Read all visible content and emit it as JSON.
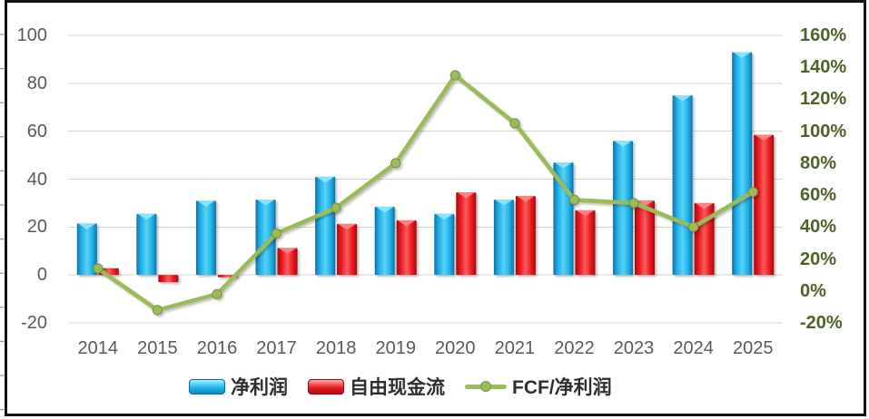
{
  "chart_data": {
    "type": "combo-bar-line",
    "title": "",
    "categories": [
      "2014",
      "2015",
      "2016",
      "2017",
      "2018",
      "2019",
      "2020",
      "2021",
      "2022",
      "2023",
      "2024",
      "2025"
    ],
    "series": [
      {
        "name": "净利润",
        "type": "bar",
        "axis": "left",
        "color": "#1fb4ea",
        "values": [
          21.5,
          25.5,
          31,
          31.5,
          41,
          28.5,
          25.5,
          31.5,
          47,
          56,
          75,
          93
        ]
      },
      {
        "name": "自由现金流",
        "type": "bar",
        "axis": "left",
        "color": "#e8191f",
        "values": [
          2.8,
          -3,
          -1,
          11.3,
          21.3,
          22.8,
          34.5,
          33,
          27,
          31,
          30,
          58.5
        ]
      },
      {
        "name": "FCF/净利润",
        "type": "line",
        "axis": "right",
        "color": "#9bbb59",
        "values_pct": [
          14,
          -12,
          -2,
          36,
          52,
          80,
          135,
          105,
          57,
          55,
          40,
          62
        ]
      }
    ],
    "left_axis": {
      "min": -20,
      "max": 100,
      "step": 20,
      "ticks": [
        "100",
        "80",
        "60",
        "40",
        "20",
        "0",
        "-20"
      ]
    },
    "right_axis": {
      "min": -20,
      "max": 160,
      "step": 20,
      "ticks": [
        "160%",
        "140%",
        "120%",
        "100%",
        "80%",
        "60%",
        "40%",
        "20%",
        "0%",
        "-20%"
      ]
    },
    "grid": true,
    "legend_position": "bottom",
    "colors": {
      "gridline": "#d6d6d6",
      "frame_border": "#141414",
      "left_axis_text": "#595959",
      "right_axis_text": "#4e6128",
      "x_axis_text": "#595959",
      "line_marker_stroke": "#78913f",
      "bar_blue_cap": "#8ae6fd",
      "bar_red_cap": "#ff8585"
    }
  }
}
